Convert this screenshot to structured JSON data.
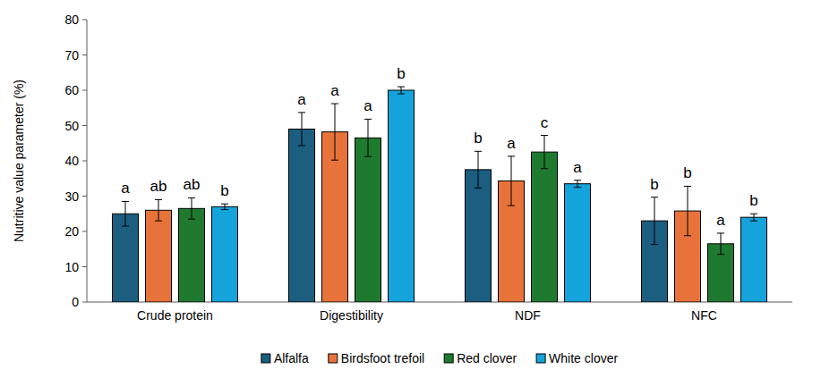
{
  "chart_data": {
    "type": "bar",
    "y_label": "Nutritive value parameter (%)",
    "categories": [
      "Crude protein",
      "Digestibility",
      "NDF",
      "NFC"
    ],
    "series": [
      {
        "name": "Alfalfa",
        "color": "#1b5e80",
        "values": [
          25,
          49,
          37.5,
          23
        ],
        "error": [
          3.5,
          4.7,
          5.2,
          6.7
        ],
        "annotations": [
          "a",
          "a",
          "b",
          "b"
        ]
      },
      {
        "name": "Birdsfoot trefoil",
        "color": "#e8733a",
        "values": [
          26,
          48.2,
          34.3,
          25.8
        ],
        "error": [
          3,
          8,
          7,
          7
        ],
        "annotations": [
          "ab",
          "a",
          "a",
          "b"
        ]
      },
      {
        "name": "Red clover",
        "color": "#1f7a30",
        "values": [
          26.5,
          46.5,
          42.5,
          16.5
        ],
        "error": [
          3,
          5.3,
          4.7,
          3
        ],
        "annotations": [
          "ab",
          "a",
          "c",
          "a"
        ]
      },
      {
        "name": "White clover",
        "color": "#14a3db",
        "values": [
          27,
          60,
          33.5,
          24
        ],
        "error": [
          0.8,
          1,
          1,
          1
        ],
        "annotations": [
          "b",
          "b",
          "a",
          "b"
        ]
      }
    ],
    "ylim": [
      0,
      80
    ],
    "yticks": [
      0,
      10,
      20,
      30,
      40,
      50,
      60,
      70,
      80
    ],
    "grid": false,
    "legend": "bottom"
  }
}
